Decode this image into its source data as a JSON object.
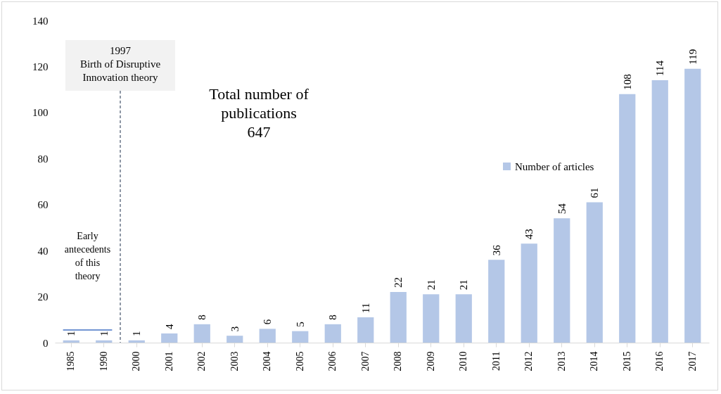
{
  "chart_data": {
    "type": "bar",
    "categories": [
      "1985",
      "1990",
      "2000",
      "2001",
      "2002",
      "2003",
      "2004",
      "2005",
      "2006",
      "2007",
      "2008",
      "2009",
      "2010",
      "2011",
      "2012",
      "2013",
      "2014",
      "2015",
      "2016",
      "2017"
    ],
    "series": [
      {
        "name": "Number of articles",
        "color": "#b4c7e7",
        "values": [
          1,
          1,
          1,
          4,
          8,
          3,
          6,
          5,
          8,
          11,
          22,
          21,
          21,
          36,
          43,
          54,
          61,
          108,
          114,
          119
        ]
      }
    ],
    "ylim": [
      0,
      140
    ],
    "yticks": [
      0,
      20,
      40,
      60,
      80,
      100,
      120,
      140
    ],
    "data_labels": true,
    "grid": false,
    "legend": "top right",
    "annotations": [
      "Total number of\npublications\n647",
      {
        "text": "1997\nBirth of Disruptive\nInnovation theory"
      },
      "Early\nantecedents\nof this\ntheory"
    ]
  }
}
